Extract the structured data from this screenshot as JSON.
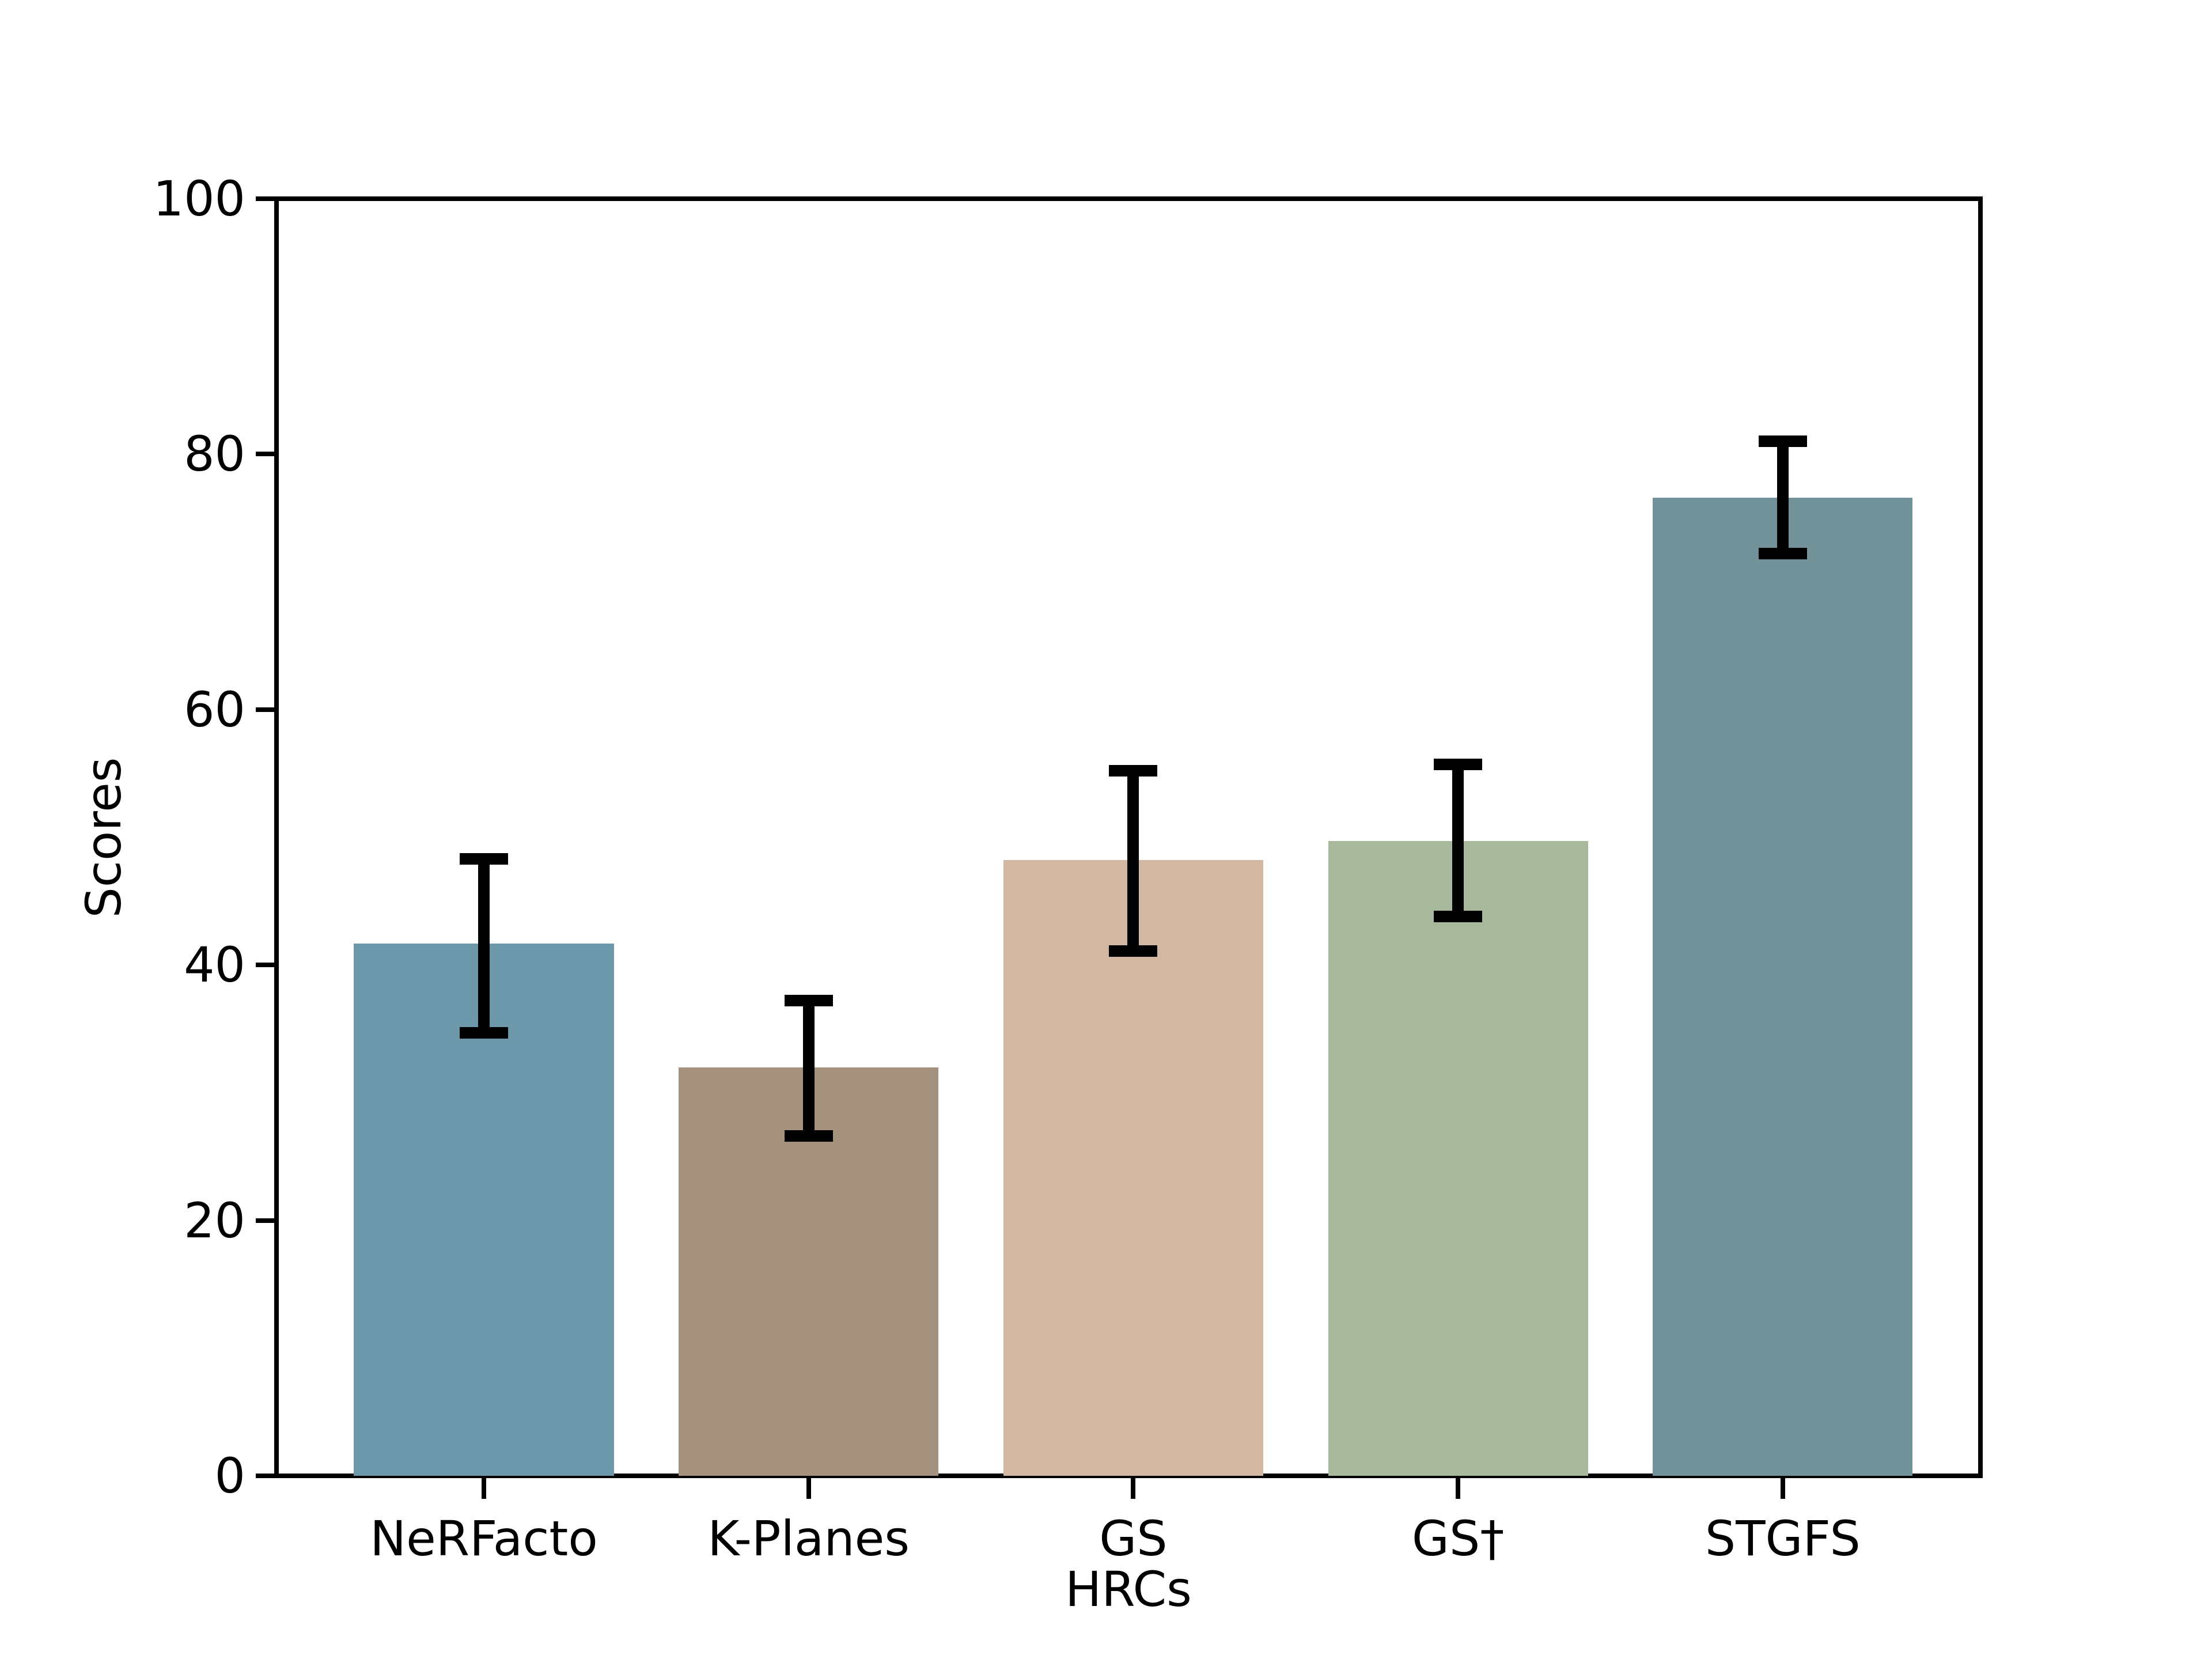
{
  "chart_data": {
    "type": "bar",
    "title": "",
    "xlabel": "HRCs",
    "ylabel": "Scores",
    "categories": [
      "NeRFacto",
      "K-Planes",
      "GS",
      "GS†",
      "STGFS"
    ],
    "series": [
      {
        "name": "Scores",
        "values": [
          41.7,
          32.0,
          48.2,
          49.7,
          76.6
        ],
        "error_low": [
          34.7,
          26.6,
          41.1,
          43.8,
          72.2
        ],
        "error_high": [
          48.3,
          37.2,
          55.2,
          55.7,
          81.0
        ]
      }
    ],
    "bar_colors": [
      "#6d98ab",
      "#a5927e",
      "#d2b7a2",
      "#a8b89b",
      "#719298"
    ],
    "error_bar_color": "#000000",
    "yticks": [
      0,
      20,
      40,
      60,
      80,
      100
    ],
    "ylim": [
      0,
      100
    ],
    "grid": false,
    "legend_position": "none",
    "background_color": "#ffffff",
    "axis_color": "#000000"
  }
}
